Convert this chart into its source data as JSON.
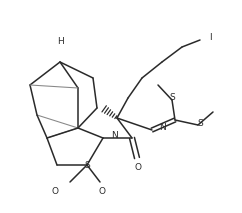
{
  "bg_color": "#ffffff",
  "line_color": "#2a2a2a",
  "line_width": 1.1,
  "fig_width": 2.42,
  "fig_height": 2.13,
  "dpi": 100,
  "xlim": [
    0,
    242
  ],
  "ylim": [
    0,
    213
  ]
}
